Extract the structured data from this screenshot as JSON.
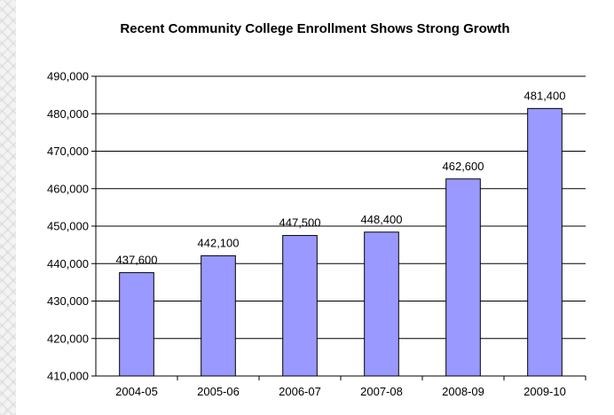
{
  "chart_data": {
    "type": "bar",
    "title": "Recent Community College Enrollment Shows Strong Growth",
    "categories": [
      "2004-05",
      "2005-06",
      "2006-07",
      "2007-08",
      "2008-09",
      "2009-10"
    ],
    "values": [
      437600,
      442100,
      447500,
      448400,
      462600,
      481400
    ],
    "data_labels": [
      "437,600",
      "442,100",
      "447,500",
      "448,400",
      "462,600",
      "481,400"
    ],
    "y_ticks": [
      "410,000",
      "420,000",
      "430,000",
      "440,000",
      "450,000",
      "460,000",
      "470,000",
      "480,000",
      "490,000"
    ],
    "ylim": [
      410000,
      490000
    ],
    "xlabel": "",
    "ylabel": "",
    "grid": true,
    "legend": "none",
    "bar_color": "#9999ff",
    "bar_stroke": "#000000",
    "grid_color": "#000000"
  }
}
